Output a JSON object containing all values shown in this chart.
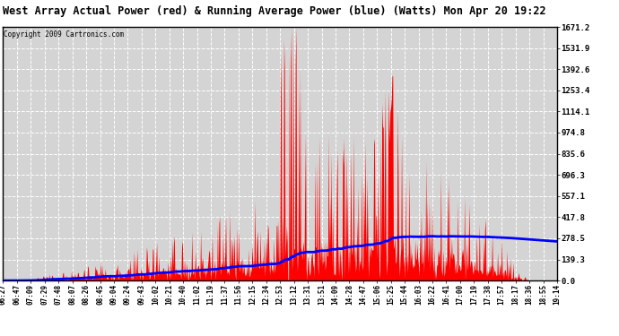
{
  "title": "West Array Actual Power (red) & Running Average Power (blue) (Watts) Mon Apr 20 19:22",
  "copyright": "Copyright 2009 Cartronics.com",
  "bg_color": "#ffffff",
  "plot_bg_color": "#d4d4d4",
  "grid_color": "#ffffff",
  "y_max": 1671.2,
  "y_min": 0.0,
  "y_ticks": [
    0.0,
    139.3,
    278.5,
    417.8,
    557.1,
    696.3,
    835.6,
    974.8,
    1114.1,
    1253.4,
    1392.6,
    1531.9,
    1671.2
  ],
  "x_labels": [
    "06:27",
    "06:47",
    "07:09",
    "07:29",
    "07:48",
    "08:07",
    "08:26",
    "08:45",
    "09:04",
    "09:24",
    "09:43",
    "10:02",
    "10:21",
    "10:40",
    "11:02",
    "11:19",
    "11:37",
    "11:56",
    "12:15",
    "12:34",
    "12:53",
    "13:12",
    "13:31",
    "13:51",
    "14:09",
    "14:28",
    "14:47",
    "15:06",
    "15:25",
    "15:44",
    "16:03",
    "16:22",
    "16:41",
    "17:00",
    "17:19",
    "17:38",
    "17:57",
    "18:17",
    "18:36",
    "18:55",
    "19:14"
  ],
  "red_color": "#ff0000",
  "blue_color": "#0000ff",
  "actual_peak": 1671.2,
  "num_points": 820,
  "seed": 12345
}
